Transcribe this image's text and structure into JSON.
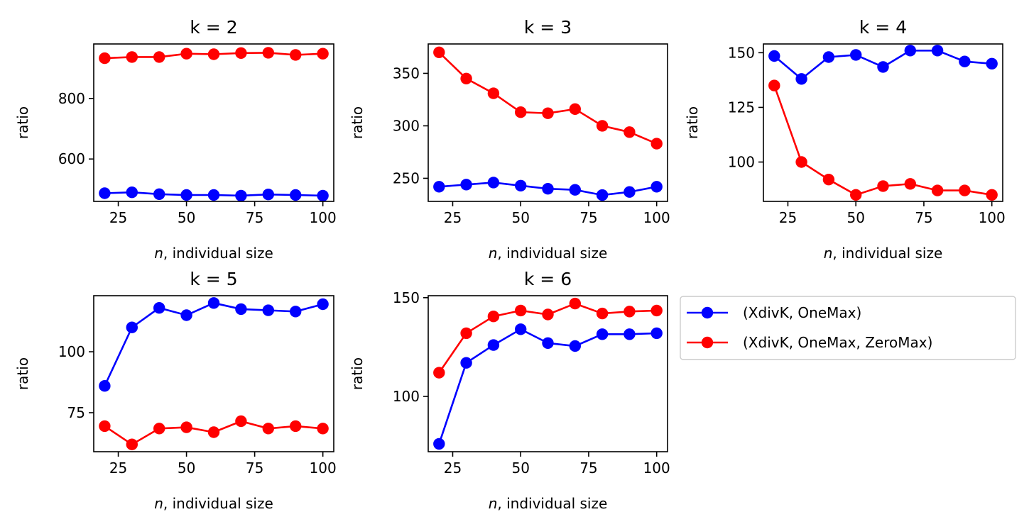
{
  "legend": [
    {
      "label": "(XdivK, OneMax)",
      "color": "#0000ff"
    },
    {
      "label": "(XdivK, OneMax, ZeroMax)",
      "color": "#ff0000"
    }
  ],
  "chart_data": [
    {
      "type": "line",
      "title": "k = 2",
      "xlabel_italic": "n",
      "xlabel_rest": ", individual size",
      "ylabel": "ratio",
      "x": [
        20,
        30,
        40,
        50,
        60,
        70,
        80,
        90,
        100
      ],
      "xticks": [
        25,
        50,
        75,
        100
      ],
      "yticks": [
        600,
        800
      ],
      "xlim": [
        16,
        104
      ],
      "ylim": [
        460,
        980
      ],
      "series": [
        {
          "name": "(XdivK, OneMax)",
          "color": "#0000ff",
          "values": [
            487,
            490,
            484,
            481,
            481,
            479,
            483,
            481,
            479
          ]
        },
        {
          "name": "(XdivK, OneMax, ZeroMax)",
          "color": "#ff0000",
          "values": [
            933,
            937,
            937,
            948,
            946,
            950,
            951,
            944,
            948
          ]
        }
      ]
    },
    {
      "type": "line",
      "title": "k = 3",
      "xlabel_italic": "n",
      "xlabel_rest": ", individual size",
      "ylabel": "ratio",
      "x": [
        20,
        30,
        40,
        50,
        60,
        70,
        80,
        90,
        100
      ],
      "xticks": [
        25,
        50,
        75,
        100
      ],
      "yticks": [
        250,
        300,
        350
      ],
      "xlim": [
        16,
        104
      ],
      "ylim": [
        228,
        378
      ],
      "series": [
        {
          "name": "(XdivK, OneMax)",
          "color": "#0000ff",
          "values": [
            242,
            244,
            246,
            243,
            240,
            239,
            234,
            237,
            242
          ]
        },
        {
          "name": "(XdivK, OneMax, ZeroMax)",
          "color": "#ff0000",
          "values": [
            370,
            345,
            331,
            313,
            312,
            316,
            300,
            294,
            283
          ]
        }
      ]
    },
    {
      "type": "line",
      "title": "k = 4",
      "xlabel_italic": "n",
      "xlabel_rest": ", individual size",
      "ylabel": "ratio",
      "x": [
        20,
        30,
        40,
        50,
        60,
        70,
        80,
        90,
        100
      ],
      "xticks": [
        25,
        50,
        75,
        100
      ],
      "yticks": [
        100,
        125,
        150
      ],
      "xlim": [
        16,
        104
      ],
      "ylim": [
        82,
        154
      ],
      "series": [
        {
          "name": "(XdivK, OneMax)",
          "color": "#0000ff",
          "values": [
            148.5,
            138,
            148,
            149,
            143.5,
            151,
            151,
            146,
            145
          ]
        },
        {
          "name": "(XdivK, OneMax, ZeroMax)",
          "color": "#ff0000",
          "values": [
            135,
            100,
            92,
            85,
            89,
            90,
            87,
            87,
            85
          ]
        }
      ]
    },
    {
      "type": "line",
      "title": "k = 5",
      "xlabel_italic": "n",
      "xlabel_rest": ", individual size",
      "ylabel": "ratio",
      "x": [
        20,
        30,
        40,
        50,
        60,
        70,
        80,
        90,
        100
      ],
      "xticks": [
        25,
        50,
        75,
        100
      ],
      "yticks": [
        75,
        100
      ],
      "xlim": [
        16,
        104
      ],
      "ylim": [
        59,
        123
      ],
      "series": [
        {
          "name": "(XdivK, OneMax)",
          "color": "#0000ff",
          "values": [
            86,
            110,
            118,
            115,
            120,
            117.5,
            117,
            116.5,
            119.5
          ]
        },
        {
          "name": "(XdivK, OneMax, ZeroMax)",
          "color": "#ff0000",
          "values": [
            69.5,
            62,
            68.5,
            69,
            67,
            71.5,
            68.5,
            69.5,
            68.5
          ]
        }
      ]
    },
    {
      "type": "line",
      "title": "k = 6",
      "xlabel_italic": "n",
      "xlabel_rest": ", individual size",
      "ylabel": "ratio",
      "x": [
        20,
        30,
        40,
        50,
        60,
        70,
        80,
        90,
        100
      ],
      "xticks": [
        25,
        50,
        75,
        100
      ],
      "yticks": [
        100,
        150
      ],
      "xlim": [
        16,
        104
      ],
      "ylim": [
        72,
        151
      ],
      "series": [
        {
          "name": "(XdivK, OneMax)",
          "color": "#0000ff",
          "values": [
            76,
            117,
            126,
            134,
            127,
            125.5,
            131.5,
            131.5,
            132
          ]
        },
        {
          "name": "(XdivK, OneMax, ZeroMax)",
          "color": "#ff0000",
          "values": [
            112,
            132,
            140.5,
            143.5,
            141.5,
            147,
            142,
            143,
            143.5
          ]
        }
      ]
    }
  ]
}
